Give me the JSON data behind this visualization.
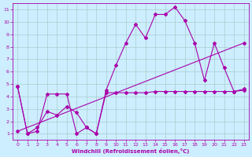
{
  "bg_color": "#cceeff",
  "grid_color": "#aacccc",
  "line_color": "#aa00aa",
  "marker": "D",
  "marker_size": 2.0,
  "lw": 0.8,
  "xlabel": "Windchill (Refroidissement éolien,°C)",
  "xlim": [
    -0.5,
    23.5
  ],
  "ylim": [
    0.5,
    11.5
  ],
  "xticks": [
    0,
    1,
    2,
    3,
    4,
    5,
    6,
    7,
    8,
    9,
    10,
    11,
    12,
    13,
    14,
    15,
    16,
    17,
    18,
    19,
    20,
    21,
    22,
    23
  ],
  "yticks": [
    1,
    2,
    3,
    4,
    5,
    6,
    7,
    8,
    9,
    10,
    11
  ],
  "series": [
    {
      "x": [
        0,
        1,
        2,
        3,
        4,
        5,
        6,
        7,
        8,
        9,
        10,
        11,
        12,
        13,
        14,
        15,
        16,
        17,
        18,
        19,
        20,
        21,
        22,
        23
      ],
      "y": [
        4.8,
        1.0,
        1.2,
        4.2,
        4.2,
        4.2,
        1.0,
        1.5,
        1.0,
        4.3,
        4.3,
        4.3,
        4.3,
        4.3,
        4.4,
        4.4,
        4.4,
        4.4,
        4.4,
        4.4,
        4.4,
        4.4,
        4.4,
        4.5
      ]
    },
    {
      "x": [
        0,
        1,
        2,
        3,
        4,
        5,
        6,
        7,
        8,
        9,
        10,
        11,
        12,
        13,
        14,
        15,
        16,
        17,
        18,
        19,
        20,
        21,
        22,
        23
      ],
      "y": [
        4.8,
        1.0,
        1.5,
        2.8,
        2.5,
        3.2,
        2.7,
        1.5,
        1.0,
        4.5,
        6.5,
        8.3,
        9.8,
        8.7,
        10.6,
        10.6,
        11.2,
        10.1,
        8.3,
        5.3,
        8.3,
        6.3,
        4.4,
        4.6
      ]
    },
    {
      "x": [
        0,
        23
      ],
      "y": [
        1.2,
        8.3
      ]
    }
  ]
}
